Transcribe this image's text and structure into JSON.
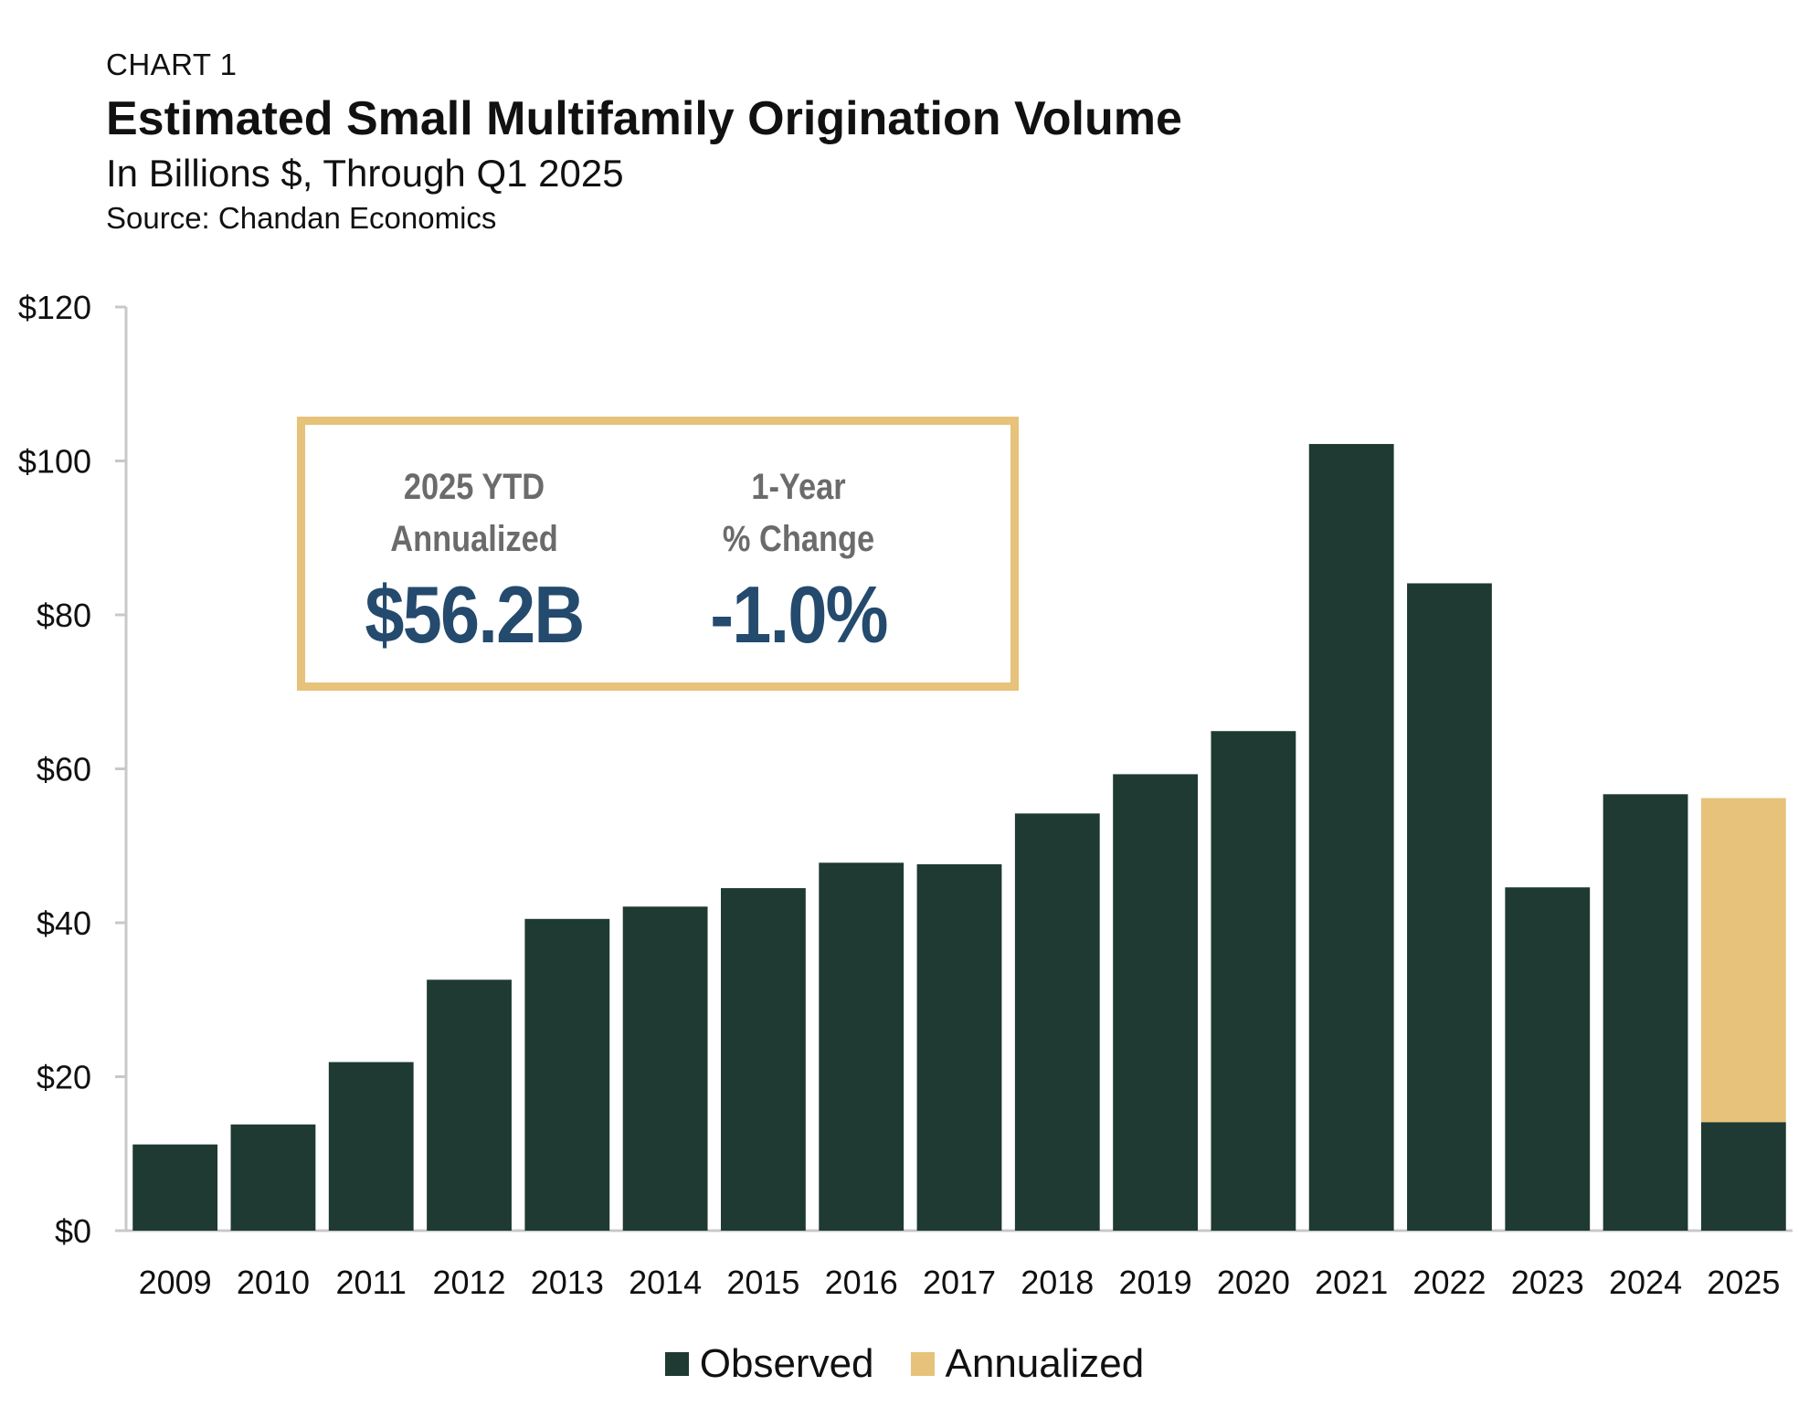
{
  "header": {
    "kicker": "CHART 1",
    "title": "Estimated Small Multifamily Origination Volume",
    "subtitle": "In Billions $, Through Q1 2025",
    "source": "Source: Chandan Economics"
  },
  "callout": {
    "left_label": "2025 YTD\nAnnualized",
    "left_value": "$56.2B",
    "right_label": "1-Year\n% Change",
    "right_value": "-1.0%"
  },
  "colors": {
    "observed": "#1e3a32",
    "annualized": "#e6c27a",
    "callout_border": "#e6c27a",
    "callout_value": "#244a6e",
    "axis": "#c8c8c8"
  },
  "chart_data": {
    "type": "bar",
    "stacked": true,
    "categories": [
      "2009",
      "2010",
      "2011",
      "2012",
      "2013",
      "2014",
      "2015",
      "2016",
      "2017",
      "2018",
      "2019",
      "2020",
      "2021",
      "2022",
      "2023",
      "2024",
      "2025"
    ],
    "series": [
      {
        "name": "Observed",
        "color": "#1e3a32",
        "values": [
          11.2,
          13.8,
          21.9,
          32.6,
          40.5,
          42.1,
          44.5,
          47.8,
          47.6,
          54.2,
          59.3,
          64.9,
          102.2,
          84.1,
          44.6,
          56.7,
          14.1
        ]
      },
      {
        "name": "Annualized",
        "color": "#e6c27a",
        "values": [
          0,
          0,
          0,
          0,
          0,
          0,
          0,
          0,
          0,
          0,
          0,
          0,
          0,
          0,
          0,
          0,
          42.1
        ]
      }
    ],
    "ylim": [
      0,
      120
    ],
    "yticks": [
      0,
      20,
      40,
      60,
      80,
      100,
      120
    ],
    "ytick_labels": [
      "$0",
      "$20",
      "$40",
      "$60",
      "$80",
      "$100",
      "$120"
    ],
    "xlabel": "",
    "ylabel": "",
    "grid": false,
    "legend": "bottom-center"
  }
}
